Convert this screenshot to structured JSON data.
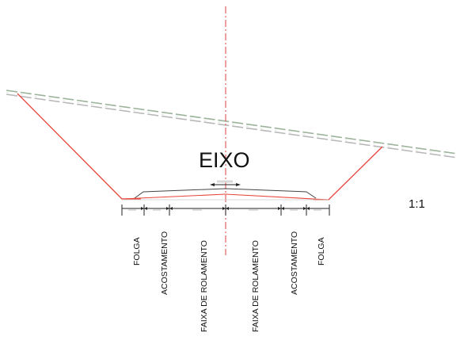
{
  "diagram": {
    "axis_label": "EIXO",
    "scale_label": "1:1",
    "segment_labels": [
      "FOLGA",
      "ACOSTAMENTO",
      "FAIXA DE ROLAMENTO",
      "FAIXA DE ROLAMENTO",
      "ACOSTAMENTO",
      "FOLGA"
    ]
  },
  "colors": {
    "cut_slope": "#e8443a",
    "centerline": "#e05050",
    "terrain_dash_a": "#9ab39a",
    "terrain_dash_b": "#b8b8b8",
    "outline": "#222222"
  }
}
